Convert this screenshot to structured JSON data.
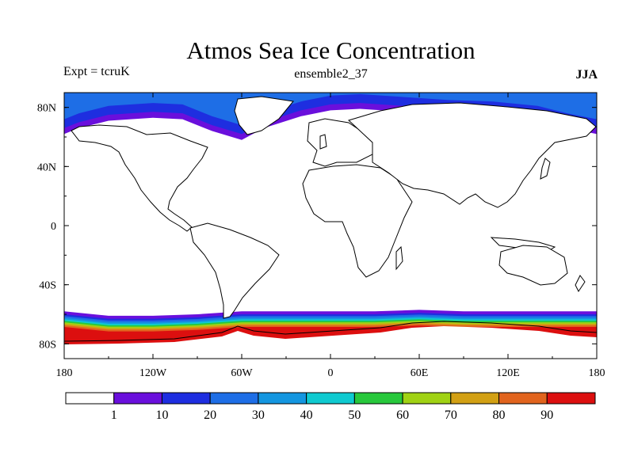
{
  "header": {
    "title": "Atmos Sea Ice Concentration",
    "experiment": "Expt = tcruK",
    "ensemble": "ensemble2_37",
    "season": "JJA"
  },
  "chart_data": {
    "type": "heatmap",
    "title": "Atmos Sea Ice Concentration",
    "projection": "cylindrical equidistant",
    "lon_range": [
      -180,
      180
    ],
    "lat_range": [
      -90,
      90
    ],
    "lat_tick_labels": [
      {
        "lat": 80,
        "label": "80N"
      },
      {
        "lat": 40,
        "label": "40N"
      },
      {
        "lat": 0,
        "label": "0"
      },
      {
        "lat": -40,
        "label": "40S"
      },
      {
        "lat": -80,
        "label": "80S"
      }
    ],
    "lon_tick_labels": [
      {
        "lon": -180,
        "label": "180"
      },
      {
        "lon": -120,
        "label": "120W"
      },
      {
        "lon": -60,
        "label": "60W"
      },
      {
        "lon": 0,
        "label": "0"
      },
      {
        "lon": 60,
        "label": "60E"
      },
      {
        "lon": 120,
        "label": "120E"
      },
      {
        "lon": 180,
        "label": "180"
      }
    ],
    "colorbar": {
      "levels": [
        1,
        10,
        20,
        30,
        40,
        50,
        60,
        70,
        80,
        90
      ],
      "labels": [
        "1",
        "10",
        "20",
        "30",
        "40",
        "50",
        "60",
        "70",
        "80",
        "90"
      ],
      "colors": [
        "#ffffff",
        "#6a0fdc",
        "#1e2ee0",
        "#1e6ee6",
        "#1496e0",
        "#0fcad0",
        "#28c83c",
        "#a0d214",
        "#d2a014",
        "#e1641e",
        "#dc0f0f"
      ]
    },
    "arctic_ice": {
      "description": "JJA arctic sea ice, outer margin mostly 1-10 (purple), interior 10-30 near pole",
      "margin_lat": [
        {
          "lon": -180,
          "lat": 62
        },
        {
          "lon": -170,
          "lat": 66
        },
        {
          "lon": -150,
          "lat": 71
        },
        {
          "lon": -120,
          "lat": 73
        },
        {
          "lon": -100,
          "lat": 72
        },
        {
          "lon": -80,
          "lat": 64
        },
        {
          "lon": -60,
          "lat": 58
        },
        {
          "lon": -45,
          "lat": 66
        },
        {
          "lon": -20,
          "lat": 74
        },
        {
          "lon": 0,
          "lat": 78
        },
        {
          "lon": 20,
          "lat": 79
        },
        {
          "lon": 50,
          "lat": 77
        },
        {
          "lon": 80,
          "lat": 75
        },
        {
          "lon": 110,
          "lat": 74
        },
        {
          "lon": 140,
          "lat": 71
        },
        {
          "lon": 160,
          "lat": 66
        },
        {
          "lon": 180,
          "lat": 62
        }
      ]
    },
    "antarctic_ice": {
      "description": "JJA antarctic sea ice, concentric bands from 1 at edge (~58S) to >90 near coast",
      "edge_lat": [
        {
          "lon": -180,
          "lat": -58
        },
        {
          "lon": -150,
          "lat": -61
        },
        {
          "lon": -120,
          "lat": -61
        },
        {
          "lon": -90,
          "lat": -60
        },
        {
          "lon": -60,
          "lat": -58
        },
        {
          "lon": -30,
          "lat": -58
        },
        {
          "lon": 0,
          "lat": -58
        },
        {
          "lon": 30,
          "lat": -58
        },
        {
          "lon": 60,
          "lat": -57
        },
        {
          "lon": 90,
          "lat": -58
        },
        {
          "lon": 120,
          "lat": -58
        },
        {
          "lon": 150,
          "lat": -58
        },
        {
          "lon": 180,
          "lat": -58
        }
      ]
    }
  }
}
